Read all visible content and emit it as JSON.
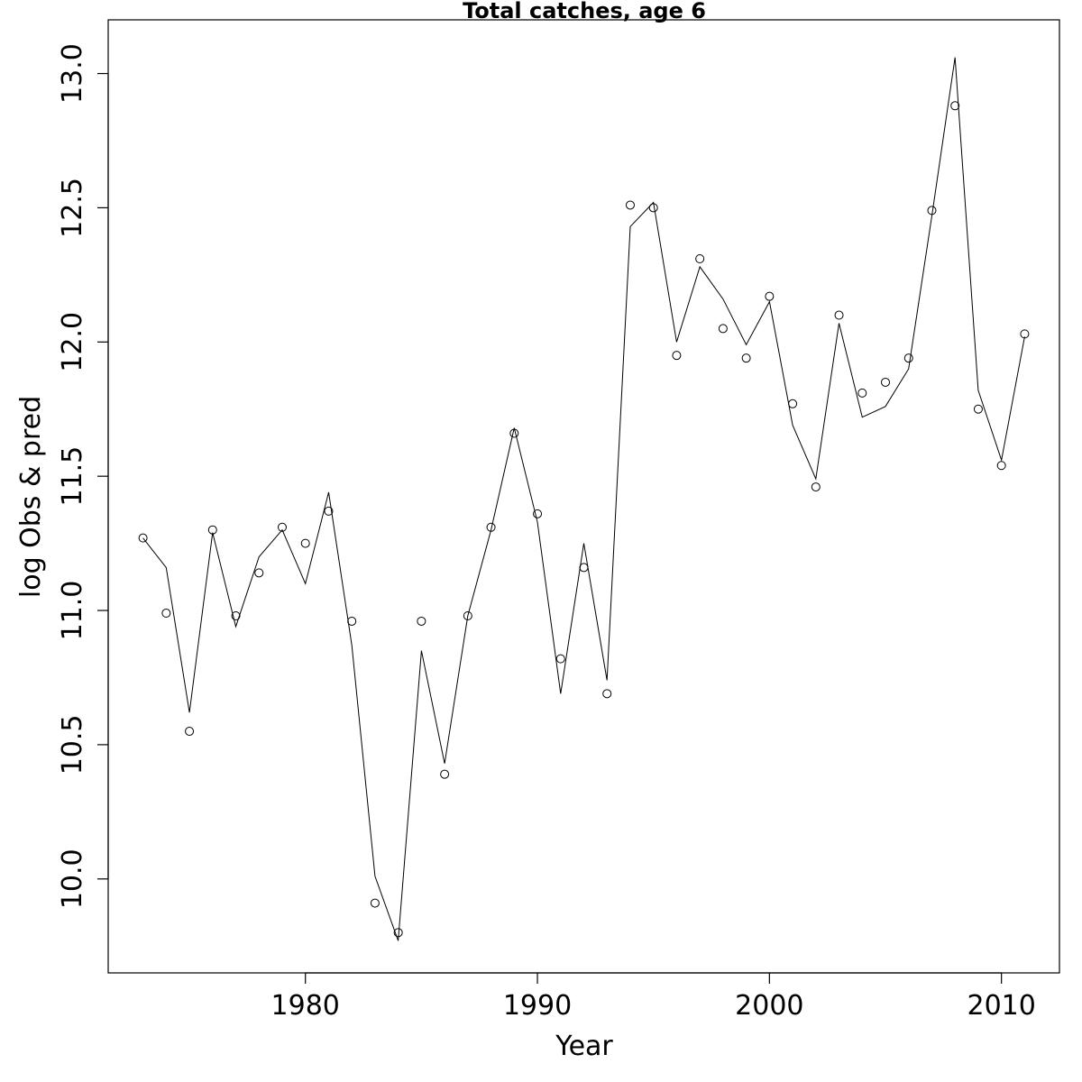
{
  "chart_data": {
    "type": "line",
    "title": "Total catches, age 6",
    "xlabel": "Year",
    "ylabel": "log Obs & pred",
    "xlim": [
      1971.5,
      2012.5
    ],
    "ylim": [
      9.65,
      13.2
    ],
    "x_ticks": [
      1980,
      1990,
      2000,
      2010
    ],
    "y_ticks": [
      10.0,
      10.5,
      11.0,
      11.5,
      12.0,
      12.5,
      13.0
    ],
    "x_tick_labels": [
      "1980",
      "1990",
      "2000",
      "2010"
    ],
    "y_tick_labels": [
      "10.0",
      "10.5",
      "11.0",
      "11.5",
      "12.0",
      "12.5",
      "13.0"
    ],
    "grid": false,
    "series": [
      {
        "style": "points",
        "x": [
          1973,
          1974,
          1975,
          1976,
          1977,
          1978,
          1979,
          1980,
          1981,
          1982,
          1983,
          1984,
          1985,
          1986,
          1987,
          1988,
          1989,
          1990,
          1991,
          1992,
          1993,
          1994,
          1995,
          1996,
          1997,
          1998,
          1999,
          2000,
          2001,
          2002,
          2003,
          2004,
          2005,
          2006,
          2007,
          2008,
          2009,
          2010,
          2011
        ],
        "y": [
          11.27,
          10.99,
          10.55,
          11.3,
          10.98,
          11.14,
          11.31,
          11.25,
          11.37,
          10.96,
          9.91,
          9.8,
          10.96,
          10.39,
          10.98,
          11.31,
          11.66,
          11.36,
          10.82,
          11.16,
          10.69,
          12.51,
          12.5,
          11.95,
          12.31,
          12.05,
          11.94,
          12.17,
          11.77,
          11.46,
          12.1,
          11.81,
          11.85,
          11.94,
          12.49,
          12.88,
          11.75,
          11.54,
          12.03
        ]
      },
      {
        "style": "line",
        "x": [
          1973,
          1974,
          1975,
          1976,
          1977,
          1978,
          1979,
          1980,
          1981,
          1982,
          1983,
          1984,
          1985,
          1986,
          1987,
          1988,
          1989,
          1990,
          1991,
          1992,
          1993,
          1994,
          1995,
          1996,
          1997,
          1998,
          1999,
          2000,
          2001,
          2002,
          2003,
          2004,
          2005,
          2006,
          2007,
          2008,
          2009,
          2010,
          2011
        ],
        "y": [
          11.27,
          11.16,
          10.62,
          11.29,
          10.94,
          11.2,
          11.3,
          11.1,
          11.44,
          10.87,
          10.01,
          9.77,
          10.85,
          10.43,
          10.98,
          11.3,
          11.68,
          11.33,
          10.69,
          11.25,
          10.74,
          12.43,
          12.52,
          12.0,
          12.28,
          12.16,
          11.99,
          12.15,
          11.69,
          11.49,
          12.07,
          11.72,
          11.76,
          11.9,
          12.47,
          13.06,
          11.82,
          11.56,
          12.02
        ]
      }
    ]
  }
}
